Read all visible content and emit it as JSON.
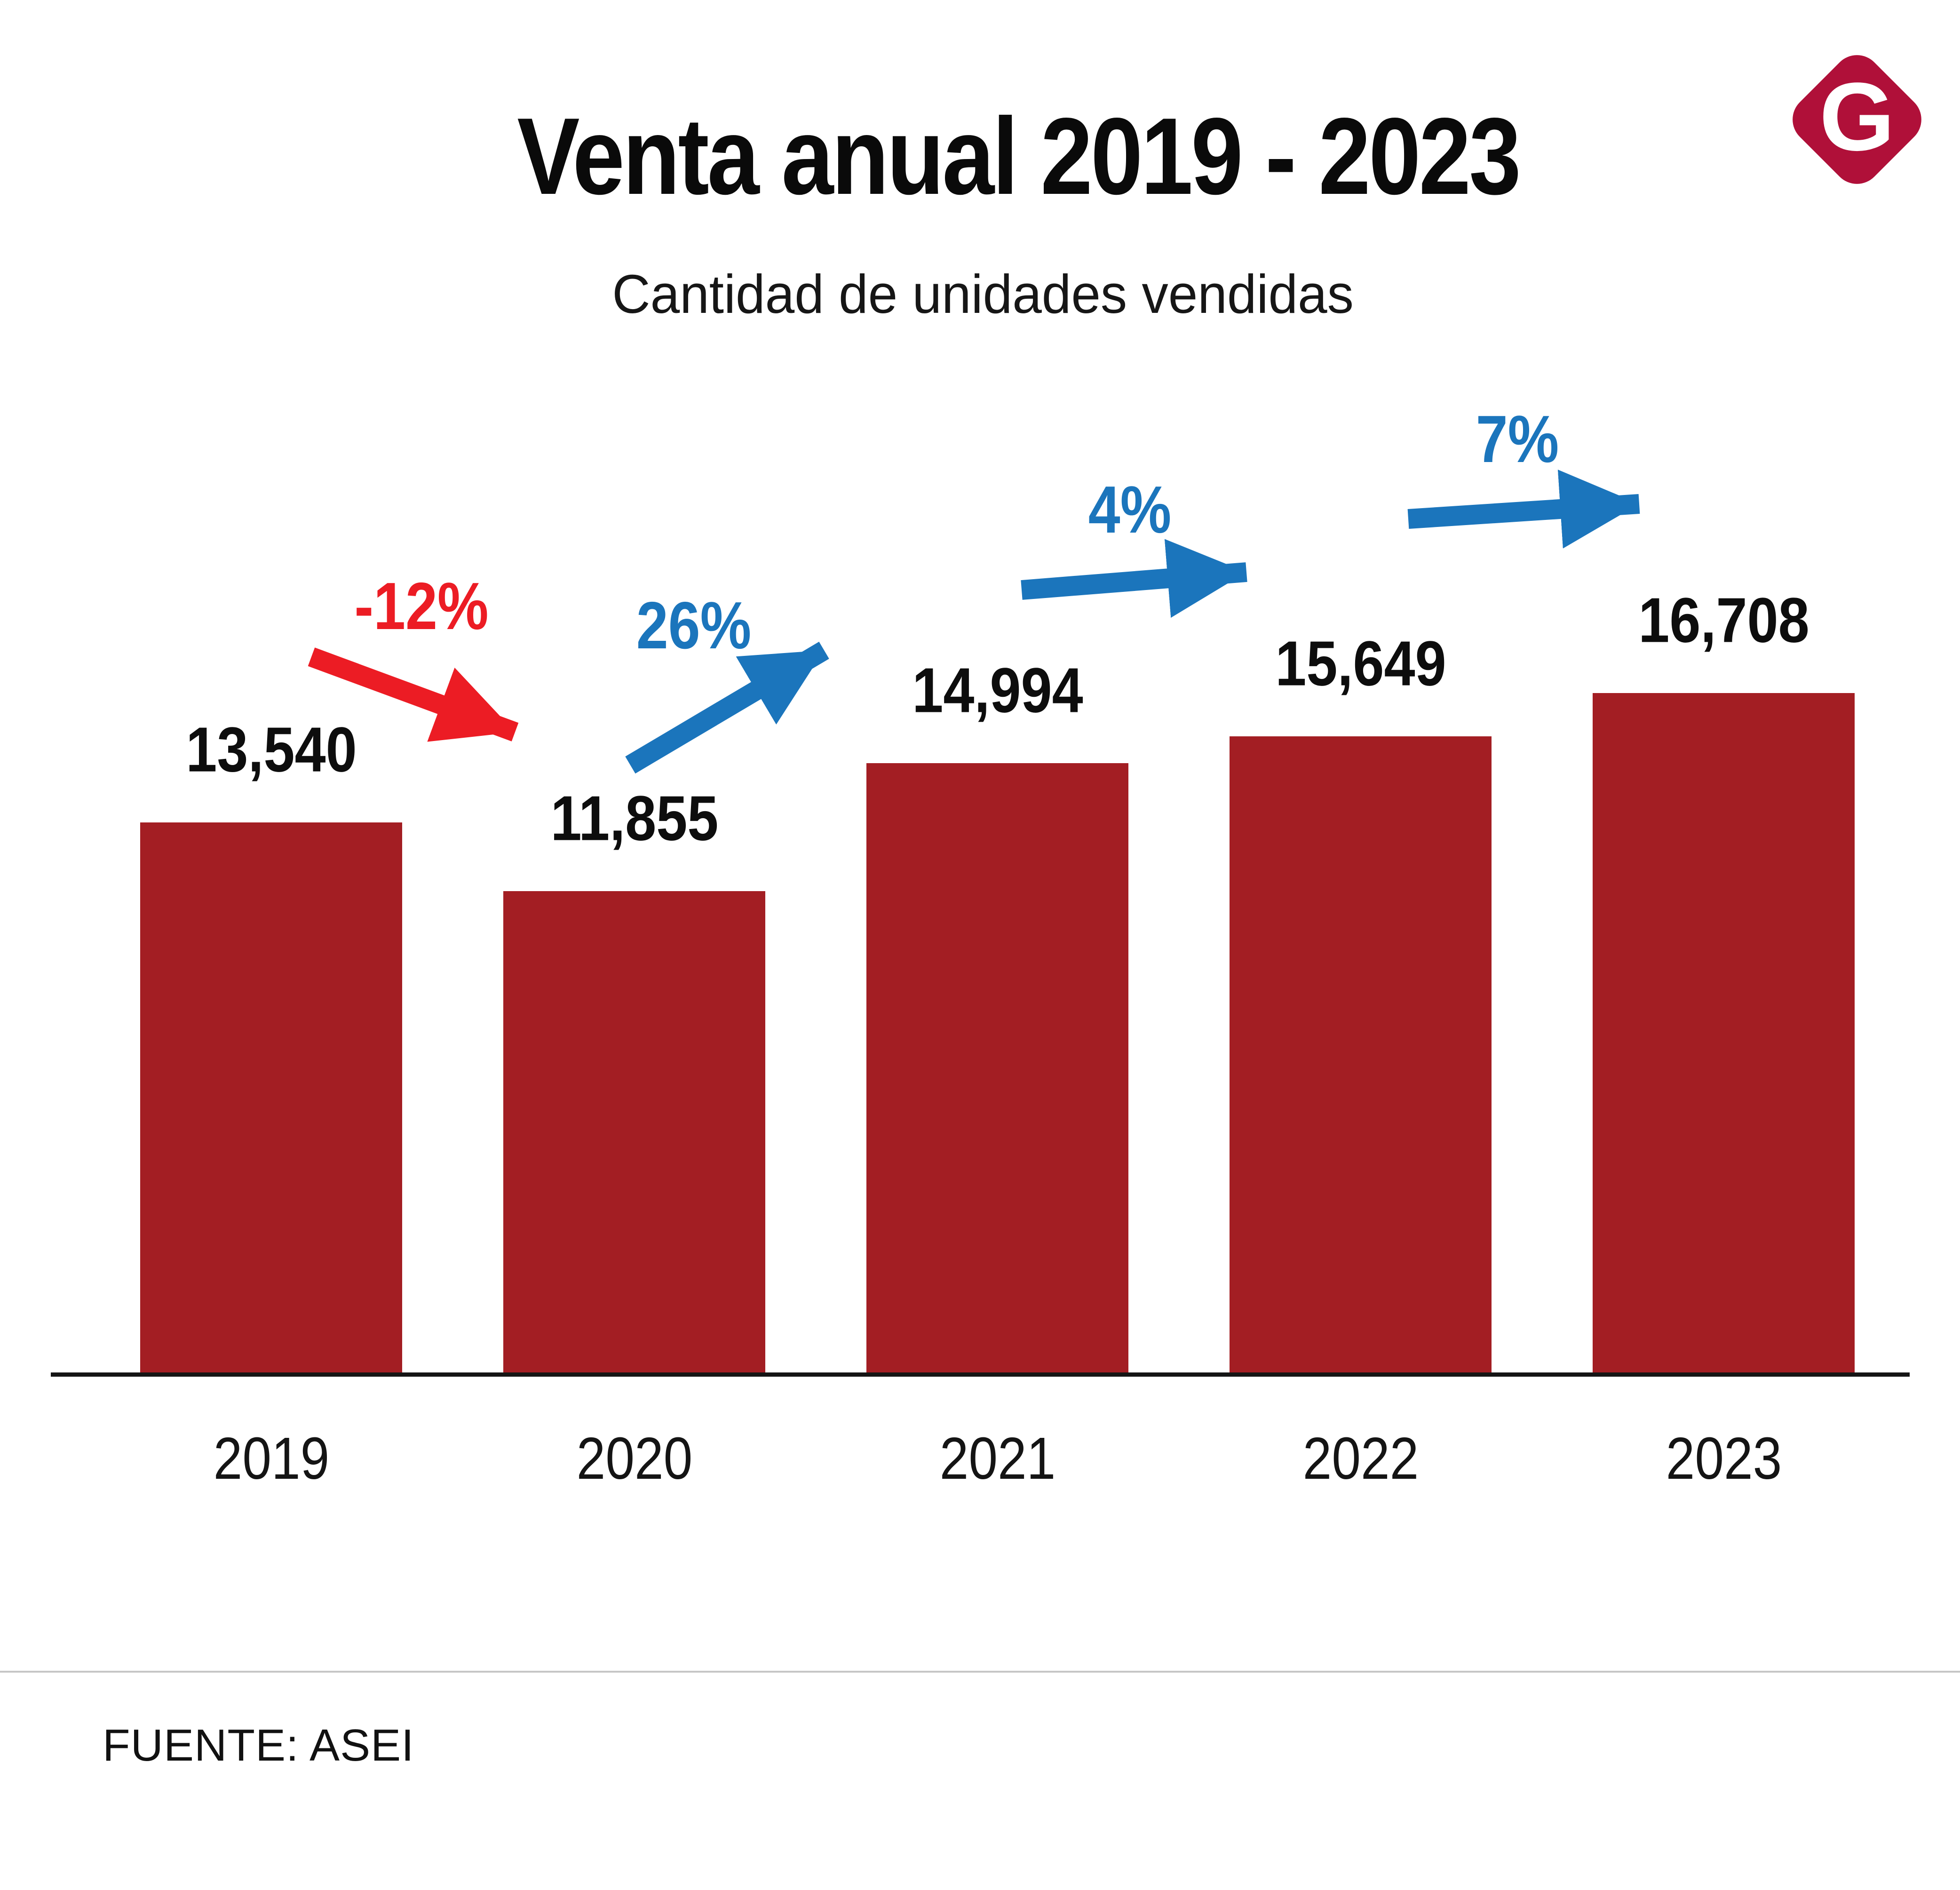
{
  "header": {
    "title": "Venta anual 2019 - 2023",
    "subtitle": "Cantidad de unidades vendidas",
    "logo_letter": "G"
  },
  "footer": {
    "source": "FUENTE: ASEI"
  },
  "colors": {
    "bar": "#A31E23",
    "logo": "#B01039",
    "up": "#1B75BC",
    "down": "#EC1C24",
    "axis": "#151515",
    "divider": "#C6C6C6",
    "text": "#0D0D0D"
  },
  "chart_data": {
    "type": "bar",
    "title": "Venta anual 2019 - 2023",
    "subtitle": "Cantidad de unidades vendidas",
    "categories": [
      "2019",
      "2020",
      "2021",
      "2022",
      "2023"
    ],
    "values": [
      13540,
      11855,
      14994,
      15649,
      16708
    ],
    "value_labels": [
      "13,540",
      "11,855",
      "14,994",
      "15,649",
      "16,708"
    ],
    "ylabel": "",
    "xlabel": "",
    "ylim": [
      0,
      16708
    ],
    "grid": false,
    "legend": false,
    "bar_color": "#A31E23",
    "annotations": [
      {
        "label": "-12%",
        "kind": "down",
        "from": "2019",
        "to": "2020"
      },
      {
        "label": "26%",
        "kind": "up",
        "from": "2020",
        "to": "2021"
      },
      {
        "label": "4%",
        "kind": "up",
        "from": "2021",
        "to": "2022"
      },
      {
        "label": "7%",
        "kind": "up",
        "from": "2022",
        "to": "2023"
      }
    ],
    "source": "FUENTE: ASEI"
  }
}
